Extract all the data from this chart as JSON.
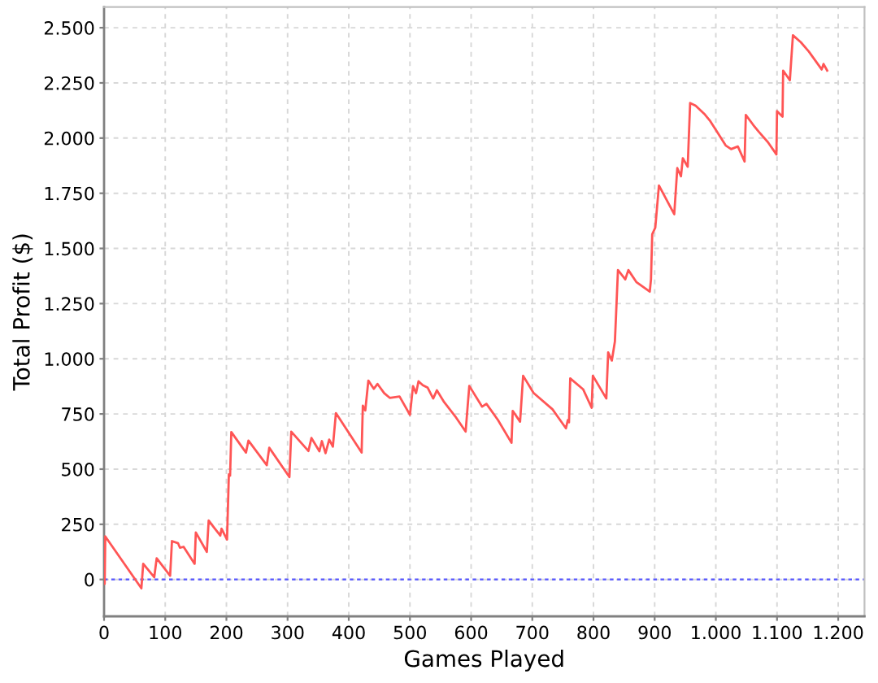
{
  "chart_data": {
    "type": "line",
    "xlabel": "Games Played",
    "ylabel": "Total Profit ($)",
    "x": [
      0,
      1,
      2,
      61,
      64,
      82,
      86,
      108,
      111,
      121,
      124,
      130,
      148,
      150,
      168,
      171,
      179,
      190,
      192,
      201,
      204,
      206,
      208,
      232,
      236,
      266,
      270,
      303,
      306,
      334,
      339,
      352,
      356,
      362,
      368,
      374,
      379,
      421,
      423,
      427,
      432,
      441,
      447,
      458,
      467,
      483,
      500,
      505,
      510,
      514,
      521,
      529,
      538,
      544,
      556,
      574,
      591,
      597,
      618,
      625,
      644,
      666,
      668,
      680,
      685,
      702,
      733,
      755,
      758,
      760,
      762,
      783,
      797,
      799,
      821,
      824,
      830,
      835,
      837,
      840,
      852,
      857,
      870,
      892,
      894,
      896,
      901,
      907,
      932,
      937,
      943,
      946,
      954,
      958,
      967,
      981,
      990,
      1003,
      1016,
      1025,
      1036,
      1047,
      1049,
      1061,
      1070,
      1085,
      1099,
      1100,
      1109,
      1110,
      1121,
      1126,
      1139,
      1152,
      1173,
      1176,
      1182
    ],
    "series": [
      {
        "color": "#ff5555",
        "values": [
          0,
          -20,
          195,
          -40,
          71,
          10,
          96,
          17,
          174,
          164,
          144,
          148,
          71,
          213,
          125,
          267,
          238,
          199,
          230,
          181,
          476,
          470,
          668,
          575,
          629,
          518,
          597,
          464,
          670,
          582,
          641,
          581,
          627,
          572,
          634,
          602,
          754,
          575,
          788,
          766,
          901,
          864,
          886,
          844,
          823,
          829,
          746,
          876,
          844,
          898,
          880,
          869,
          820,
          857,
          803,
          739,
          670,
          877,
          783,
          796,
          722,
          619,
          764,
          715,
          923,
          845,
          771,
          685,
          722,
          712,
          911,
          862,
          778,
          923,
          820,
          1029,
          992,
          1078,
          1206,
          1402,
          1360,
          1402,
          1348,
          1304,
          1360,
          1564,
          1594,
          1785,
          1655,
          1864,
          1827,
          1909,
          1870,
          2159,
          2147,
          2110,
          2080,
          2024,
          1967,
          1950,
          1962,
          1894,
          2105,
          2060,
          2029,
          1982,
          1926,
          2122,
          2097,
          2306,
          2262,
          2466,
          2434,
          2392,
          2311,
          2336,
          2306
        ]
      }
    ],
    "xlim": [
      0,
      1243
    ],
    "ylim": [
      -167,
      2594
    ],
    "xticks": [
      0,
      100,
      200,
      300,
      400,
      500,
      600,
      700,
      800,
      900,
      {
        "value": 1000,
        "label": "1.000"
      },
      {
        "value": 1100,
        "label": "1.100"
      },
      {
        "value": 1200,
        "label": "1.200"
      }
    ],
    "yticks": [
      0,
      250,
      500,
      750,
      {
        "value": 1000,
        "label": "1.000"
      },
      {
        "value": 1250,
        "label": "1.250"
      },
      {
        "value": 1500,
        "label": "1.500"
      },
      {
        "value": 1750,
        "label": "1.750"
      },
      {
        "value": 2000,
        "label": "2.000"
      },
      {
        "value": 2250,
        "label": "2.250"
      },
      {
        "value": 2500,
        "label": "2.500"
      }
    ],
    "grid": true,
    "ref_lines": [
      {
        "axis": "y",
        "value": 0,
        "color": "#5555ff",
        "line_style": "dashed"
      }
    ]
  }
}
